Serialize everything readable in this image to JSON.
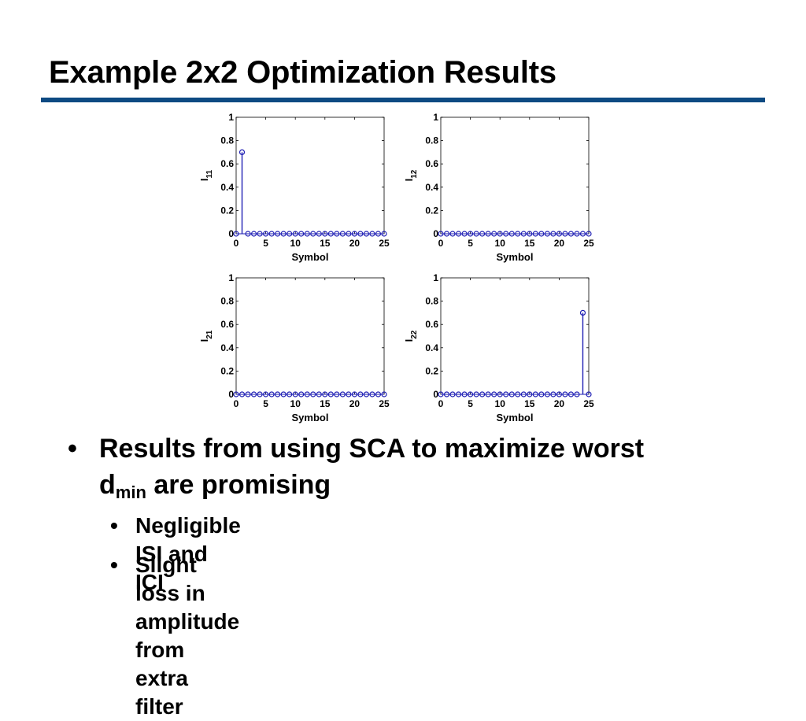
{
  "slide": {
    "title": "Example 2x2 Optimization Results",
    "accent_color": "#0d4a82"
  },
  "bullets": {
    "main": {
      "text_before": "Results from using SCA to maximize worst ",
      "line2_lead": "d",
      "subscript": "min",
      "text_after": " are promising"
    },
    "sub": [
      "Negligible ISI and ICI",
      "Slight loss in amplitude from extra filter"
    ]
  },
  "chart_data": [
    {
      "type": "stem",
      "ylabel": "I",
      "ylabel_sub": "11",
      "xlabel": "Symbol",
      "xlim": [
        0,
        25
      ],
      "ylim": [
        0,
        1
      ],
      "xticks": [
        "0",
        "5",
        "10",
        "15",
        "20",
        "25"
      ],
      "yticks": [
        "0",
        "0.2",
        "0.4",
        "0.6",
        "0.8",
        "1"
      ],
      "x": [
        0,
        1,
        2,
        3,
        4,
        5,
        6,
        7,
        8,
        9,
        10,
        11,
        12,
        13,
        14,
        15,
        16,
        17,
        18,
        19,
        20,
        21,
        22,
        23,
        24,
        25
      ],
      "y": [
        0,
        0.7,
        0,
        0,
        0,
        0,
        0,
        0,
        0,
        0,
        0,
        0,
        0,
        0,
        0,
        0,
        0,
        0,
        0,
        0,
        0,
        0,
        0,
        0,
        0,
        0
      ],
      "color": "#1f1fb4"
    },
    {
      "type": "stem",
      "ylabel": "I",
      "ylabel_sub": "12",
      "xlabel": "Symbol",
      "xlim": [
        0,
        25
      ],
      "ylim": [
        0,
        1
      ],
      "xticks": [
        "0",
        "5",
        "10",
        "15",
        "20",
        "25"
      ],
      "yticks": [
        "0",
        "0.2",
        "0.4",
        "0.6",
        "0.8",
        "1"
      ],
      "x": [
        0,
        1,
        2,
        3,
        4,
        5,
        6,
        7,
        8,
        9,
        10,
        11,
        12,
        13,
        14,
        15,
        16,
        17,
        18,
        19,
        20,
        21,
        22,
        23,
        24,
        25
      ],
      "y": [
        0,
        0,
        0,
        0,
        0,
        0,
        0,
        0,
        0,
        0,
        0,
        0,
        0,
        0,
        0,
        0,
        0,
        0,
        0,
        0,
        0,
        0,
        0,
        0,
        0,
        0
      ],
      "color": "#1f1fb4"
    },
    {
      "type": "stem",
      "ylabel": "I",
      "ylabel_sub": "21",
      "xlabel": "Symbol",
      "xlim": [
        0,
        25
      ],
      "ylim": [
        0,
        1
      ],
      "xticks": [
        "0",
        "5",
        "10",
        "15",
        "20",
        "25"
      ],
      "yticks": [
        "0",
        "0.2",
        "0.4",
        "0.6",
        "0.8",
        "1"
      ],
      "x": [
        0,
        1,
        2,
        3,
        4,
        5,
        6,
        7,
        8,
        9,
        10,
        11,
        12,
        13,
        14,
        15,
        16,
        17,
        18,
        19,
        20,
        21,
        22,
        23,
        24,
        25
      ],
      "y": [
        0,
        0,
        0,
        0,
        0,
        0,
        0,
        0,
        0,
        0,
        0,
        0,
        0,
        0,
        0,
        0,
        0,
        0,
        0,
        0,
        0,
        0,
        0,
        0,
        0,
        0
      ],
      "color": "#1f1fb4"
    },
    {
      "type": "stem",
      "ylabel": "I",
      "ylabel_sub": "22",
      "xlabel": "Symbol",
      "xlim": [
        0,
        25
      ],
      "ylim": [
        0,
        1
      ],
      "xticks": [
        "0",
        "5",
        "10",
        "15",
        "20",
        "25"
      ],
      "yticks": [
        "0",
        "0.2",
        "0.4",
        "0.6",
        "0.8",
        "1"
      ],
      "x": [
        0,
        1,
        2,
        3,
        4,
        5,
        6,
        7,
        8,
        9,
        10,
        11,
        12,
        13,
        14,
        15,
        16,
        17,
        18,
        19,
        20,
        21,
        22,
        23,
        24,
        25
      ],
      "y": [
        0,
        0,
        0,
        0,
        0,
        0,
        0,
        0,
        0,
        0,
        0,
        0,
        0,
        0,
        0,
        0,
        0,
        0,
        0,
        0,
        0,
        0,
        0,
        0,
        0.7,
        0
      ],
      "color": "#1f1fb4"
    }
  ]
}
